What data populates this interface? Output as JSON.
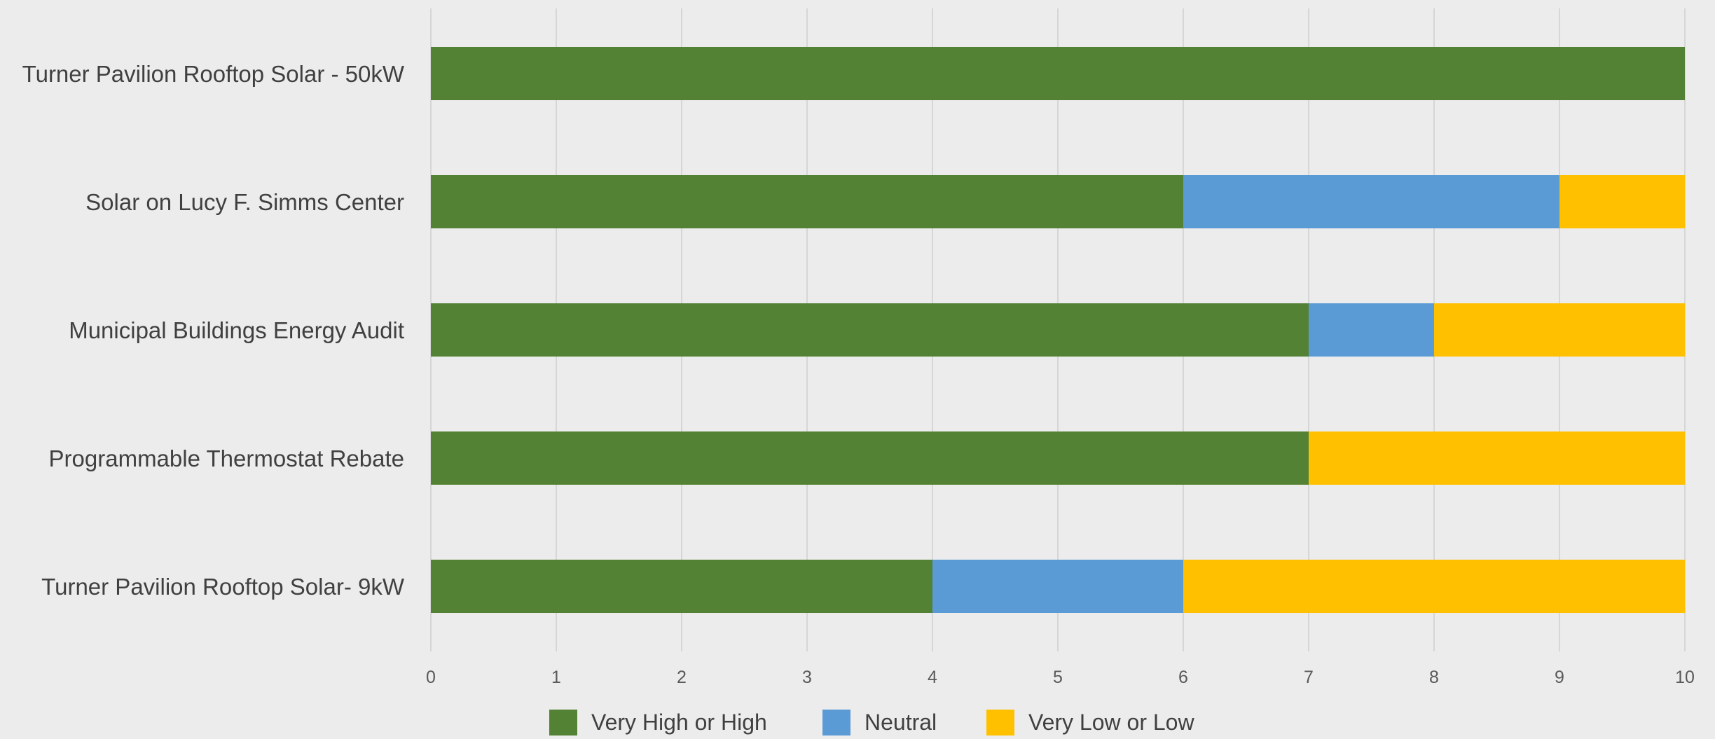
{
  "chart_data": {
    "type": "bar",
    "orientation": "horizontal",
    "stacked": true,
    "categories": [
      "Turner Pavilion Rooftop Solar - 50kW",
      "Solar on Lucy F. Simms Center",
      "Municipal Buildings Energy Audit",
      "Programmable Thermostat Rebate",
      "Turner Pavilion Rooftop Solar- 9kW"
    ],
    "series": [
      {
        "name": "Very High or High",
        "color": "#548235",
        "values": [
          10,
          6,
          7,
          7,
          4
        ]
      },
      {
        "name": "Neutral",
        "color": "#5b9bd5",
        "values": [
          0,
          3,
          1,
          0,
          2
        ]
      },
      {
        "name": "Very Low or Low",
        "color": "#ffc000",
        "values": [
          0,
          1,
          2,
          3,
          4
        ]
      }
    ],
    "xlim": [
      0,
      10
    ],
    "xticks": [
      "0",
      "1",
      "2",
      "3",
      "4",
      "5",
      "6",
      "7",
      "8",
      "9",
      "10"
    ],
    "title": "",
    "xlabel": "",
    "ylabel": "",
    "grid": "vertical",
    "legend": "bottom"
  }
}
